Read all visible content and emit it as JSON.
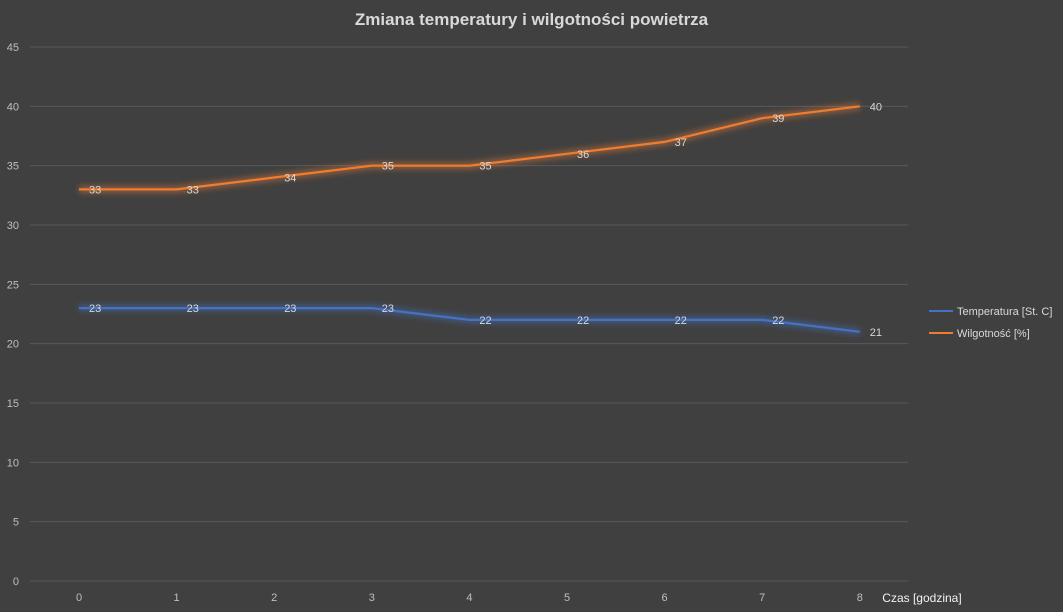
{
  "chart_data": {
    "type": "line",
    "title": "Zmiana temperatury i wilgotności powietrza",
    "xlabel": "Czas [godzina]",
    "ylabel": "",
    "x": [
      0,
      1,
      2,
      3,
      4,
      5,
      6,
      7,
      8
    ],
    "ylim": [
      0,
      45
    ],
    "yticks": [
      0,
      5,
      10,
      15,
      20,
      25,
      30,
      35,
      40,
      45
    ],
    "grid": true,
    "legend": "right",
    "data_labels": true,
    "series": [
      {
        "name": "Temperatura [St. C]",
        "color": "#4472c4",
        "values": [
          23,
          23,
          23,
          23,
          22,
          22,
          22,
          22,
          21
        ]
      },
      {
        "name": "Wilgotność [%]",
        "color": "#ed7d31",
        "values": [
          33,
          33,
          34,
          35,
          35,
          36,
          37,
          39,
          40
        ]
      }
    ]
  },
  "colors": {
    "background": "#404040",
    "grid": "#595959",
    "text": "#d9d9d9"
  }
}
